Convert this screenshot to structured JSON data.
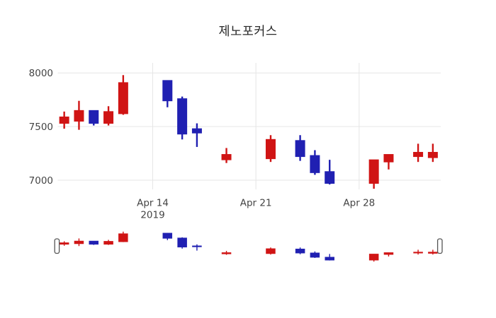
{
  "title": "제노포커스",
  "colors": {
    "background": "#ffffff",
    "grid": "#e6e6e6",
    "tick_text": "#444444",
    "title_text": "#2a2a2a",
    "handle_fill": "#ffffff",
    "handle_stroke": "#555555"
  },
  "chart_data": {
    "type": "candlestick",
    "title": "제노포커스",
    "xlabel": "",
    "ylabel": "",
    "legend": {
      "visible": false
    },
    "grid": true,
    "rangeslider": {
      "visible": true
    },
    "colors": {
      "increasing": "#d01414",
      "decreasing": "#2020b2"
    },
    "yaxis": {
      "ticks": [
        8000,
        7500,
        7000
      ],
      "range": [
        6914,
        8094
      ]
    },
    "xaxis": {
      "range": [
        "2019-04-07",
        "2019-05-04"
      ],
      "ticks": [
        {
          "date": "2019-04-14",
          "label": "Apr 14",
          "sublabel": "2019"
        },
        {
          "date": "2019-04-21",
          "label": "Apr 21",
          "sublabel": ""
        },
        {
          "date": "2019-04-28",
          "label": "Apr 28",
          "sublabel": ""
        }
      ]
    },
    "ohlc": [
      {
        "date": "2019-04-08",
        "open": 7530,
        "high": 7640,
        "low": 7480,
        "close": 7590,
        "direction": "up"
      },
      {
        "date": "2019-04-09",
        "open": 7550,
        "high": 7740,
        "low": 7470,
        "close": 7650,
        "direction": "up"
      },
      {
        "date": "2019-04-10",
        "open": 7650,
        "high": 7650,
        "low": 7510,
        "close": 7530,
        "direction": "down"
      },
      {
        "date": "2019-04-11",
        "open": 7530,
        "high": 7690,
        "low": 7510,
        "close": 7640,
        "direction": "up"
      },
      {
        "date": "2019-04-12",
        "open": 7620,
        "high": 7980,
        "low": 7610,
        "close": 7910,
        "direction": "up"
      },
      {
        "date": "2019-04-15",
        "open": 7930,
        "high": 7930,
        "low": 7680,
        "close": 7740,
        "direction": "down"
      },
      {
        "date": "2019-04-16",
        "open": 7760,
        "high": 7780,
        "low": 7380,
        "close": 7430,
        "direction": "down"
      },
      {
        "date": "2019-04-17",
        "open": 7480,
        "high": 7530,
        "low": 7310,
        "close": 7440,
        "direction": "down"
      },
      {
        "date": "2019-04-19",
        "open": 7190,
        "high": 7300,
        "low": 7160,
        "close": 7240,
        "direction": "up"
      },
      {
        "date": "2019-04-22",
        "open": 7200,
        "high": 7420,
        "low": 7170,
        "close": 7380,
        "direction": "up"
      },
      {
        "date": "2019-04-24",
        "open": 7370,
        "high": 7420,
        "low": 7180,
        "close": 7220,
        "direction": "down"
      },
      {
        "date": "2019-04-25",
        "open": 7230,
        "high": 7280,
        "low": 7050,
        "close": 7070,
        "direction": "down"
      },
      {
        "date": "2019-04-26",
        "open": 7080,
        "high": 7190,
        "low": 6960,
        "close": 6970,
        "direction": "down"
      },
      {
        "date": "2019-04-29",
        "open": 6970,
        "high": 7190,
        "low": 6920,
        "close": 7190,
        "direction": "up"
      },
      {
        "date": "2019-04-30",
        "open": 7170,
        "high": 7240,
        "low": 7100,
        "close": 7240,
        "direction": "up"
      },
      {
        "date": "2019-05-02",
        "open": 7220,
        "high": 7340,
        "low": 7170,
        "close": 7260,
        "direction": "up"
      },
      {
        "date": "2019-05-03",
        "open": 7210,
        "high": 7340,
        "low": 7170,
        "close": 7260,
        "direction": "up"
      }
    ]
  }
}
